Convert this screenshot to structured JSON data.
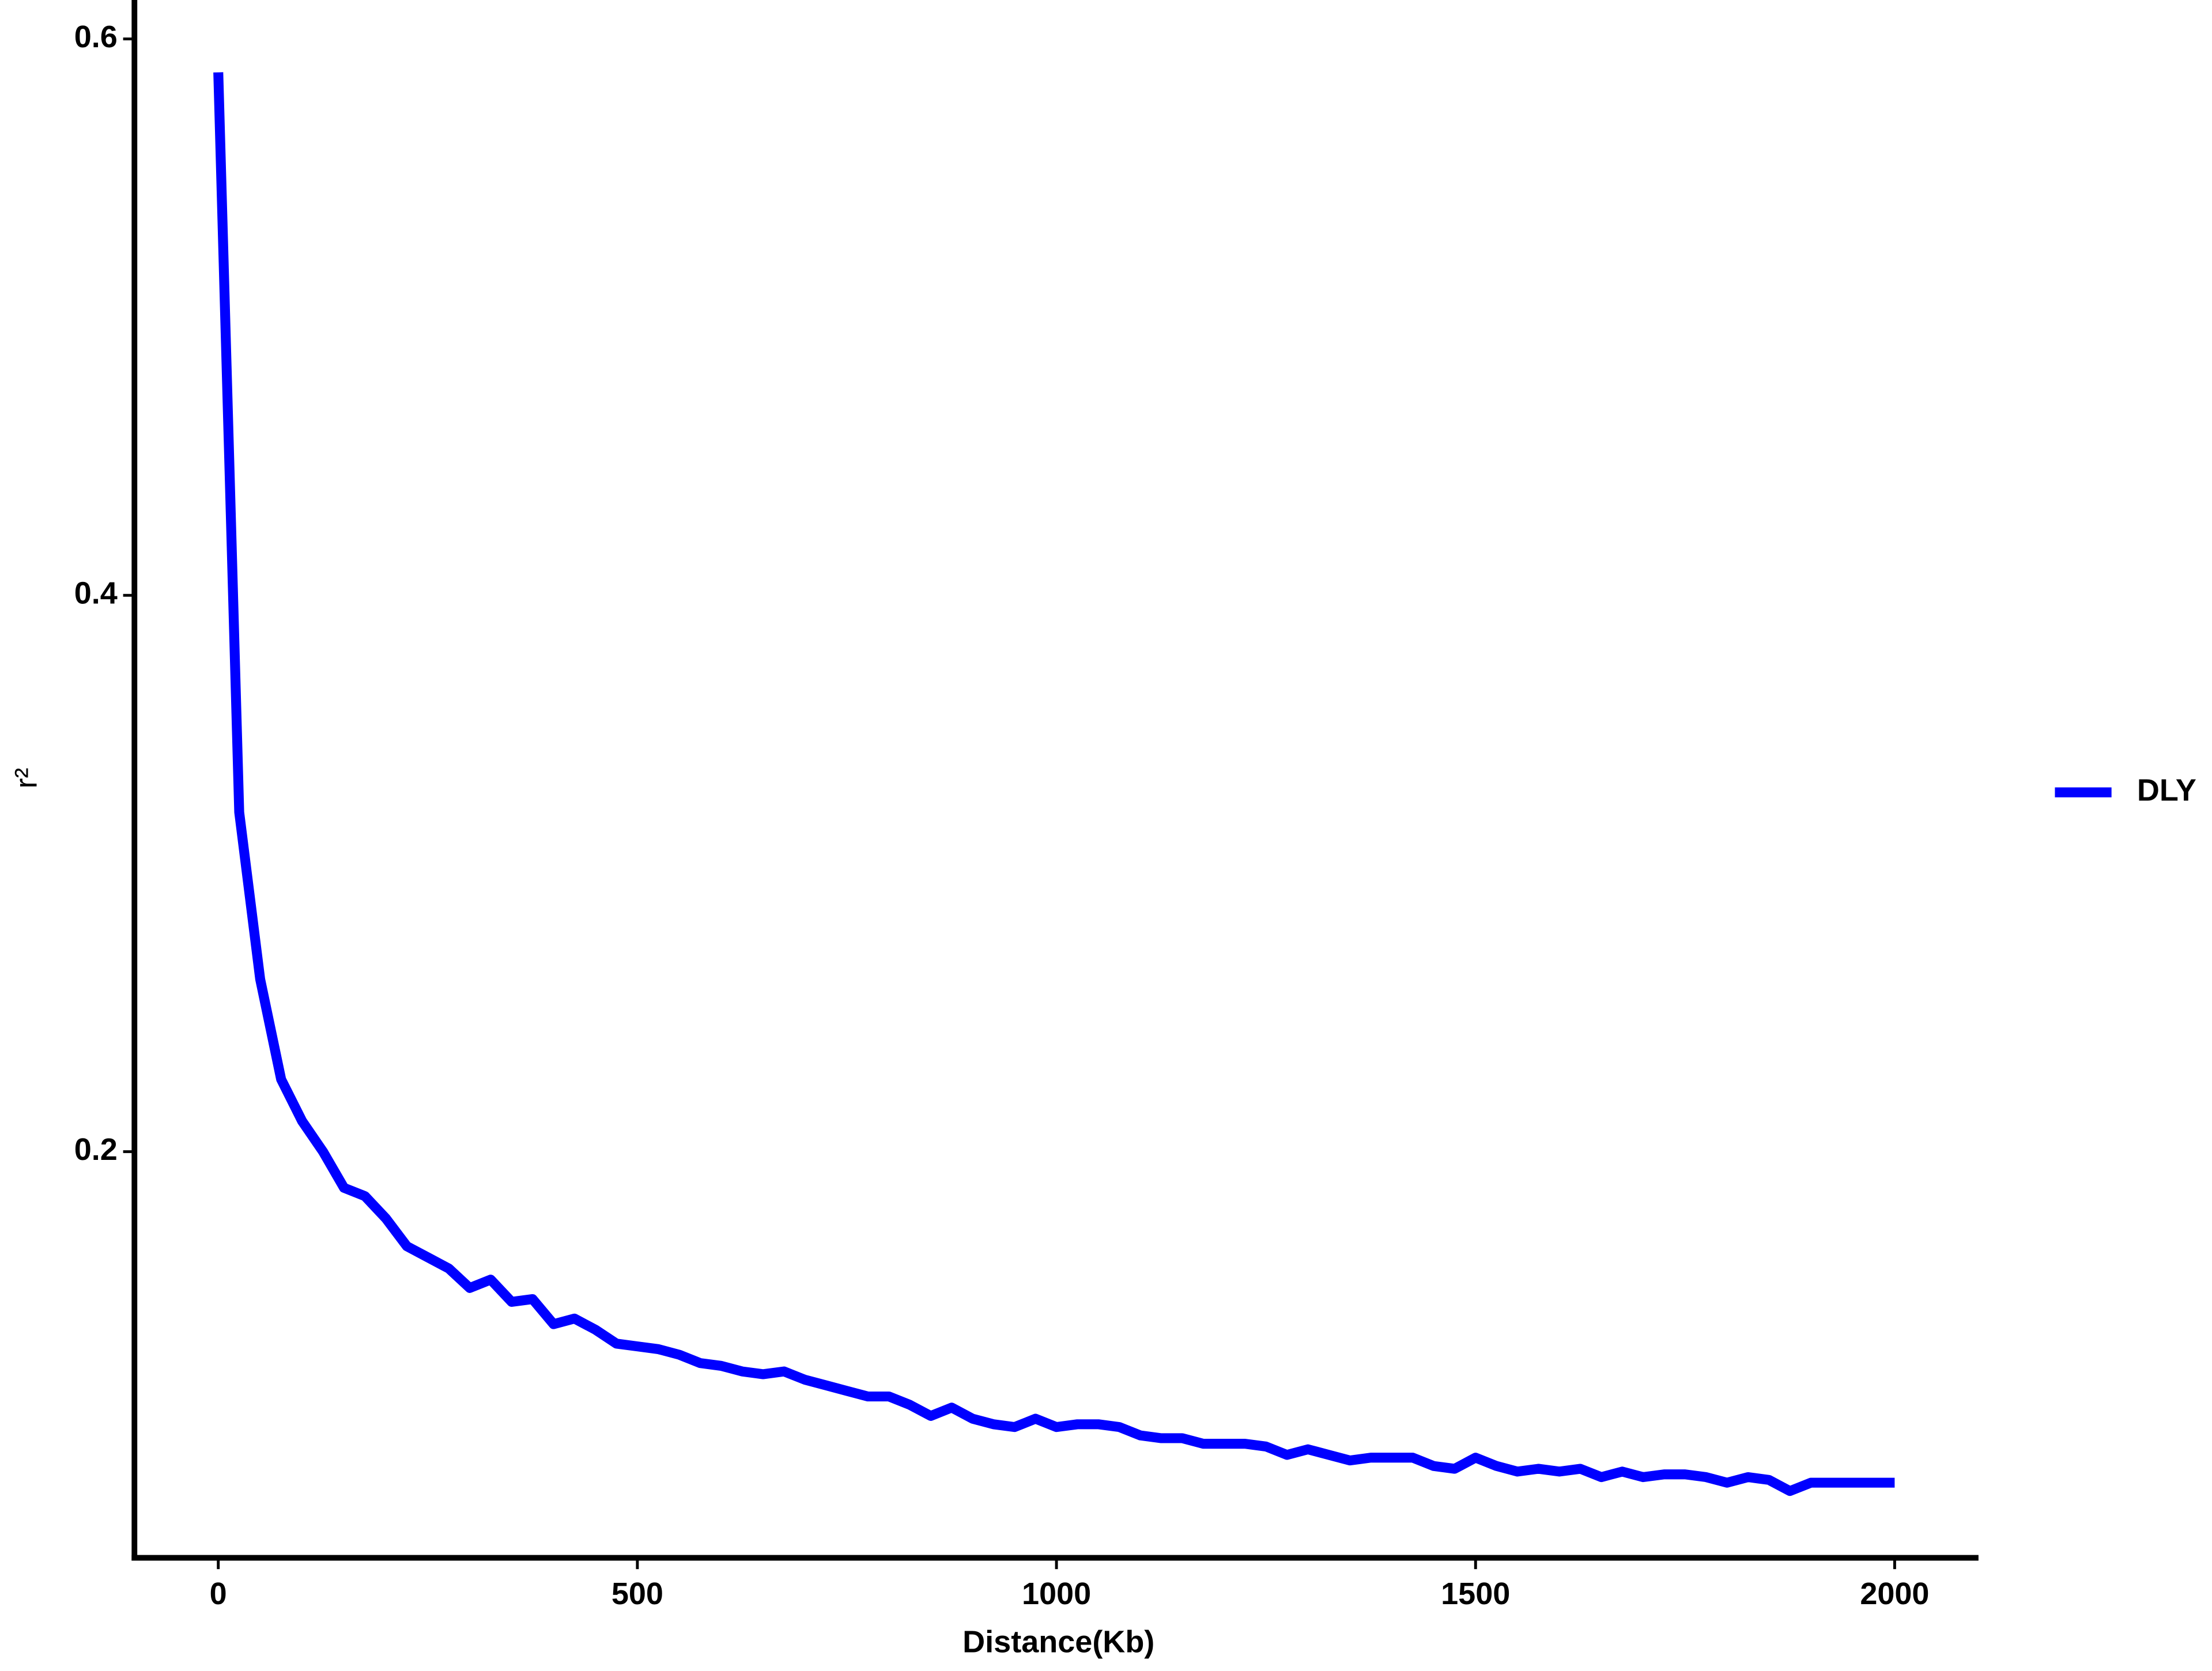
{
  "chart_data": {
    "type": "line",
    "x_label": "Distance(Kb)",
    "y_label": "r²",
    "x": [
      0,
      25,
      50,
      75,
      100,
      125,
      150,
      175,
      200,
      225,
      250,
      275,
      300,
      325,
      350,
      375,
      400,
      425,
      450,
      475,
      500,
      525,
      550,
      575,
      600,
      625,
      650,
      675,
      700,
      725,
      750,
      775,
      800,
      825,
      850,
      875,
      900,
      925,
      950,
      975,
      1000,
      1025,
      1050,
      1075,
      1100,
      1125,
      1150,
      1175,
      1200,
      1225,
      1250,
      1275,
      1300,
      1325,
      1350,
      1375,
      1400,
      1425,
      1450,
      1475,
      1500,
      1525,
      1550,
      1575,
      1600,
      1625,
      1650,
      1675,
      1700,
      1725,
      1750,
      1775,
      1800,
      1825,
      1850,
      1875,
      1900,
      1925,
      1950,
      1975,
      2000
    ],
    "series": [
      {
        "name": "DLY",
        "color": "#0000ff",
        "values": [
          0.588,
          0.322,
          0.262,
          0.226,
          0.211,
          0.2,
          0.187,
          0.184,
          0.176,
          0.166,
          0.162,
          0.158,
          0.151,
          0.154,
          0.146,
          0.147,
          0.138,
          0.14,
          0.136,
          0.131,
          0.13,
          0.129,
          0.127,
          0.124,
          0.123,
          0.121,
          0.12,
          0.121,
          0.118,
          0.116,
          0.114,
          0.112,
          0.112,
          0.109,
          0.105,
          0.108,
          0.104,
          0.102,
          0.101,
          0.104,
          0.101,
          0.102,
          0.102,
          0.101,
          0.098,
          0.097,
          0.097,
          0.095,
          0.095,
          0.095,
          0.094,
          0.091,
          0.093,
          0.091,
          0.089,
          0.09,
          0.09,
          0.09,
          0.087,
          0.086,
          0.09,
          0.087,
          0.085,
          0.086,
          0.085,
          0.086,
          0.083,
          0.085,
          0.083,
          0.084,
          0.084,
          0.083,
          0.081,
          0.083,
          0.082,
          0.078,
          0.081,
          0.081,
          0.081,
          0.081,
          0.081
        ]
      }
    ],
    "xlim": [
      -100,
      2100
    ],
    "xticks": [
      0,
      500,
      1000,
      1500,
      2000
    ],
    "ylim": [
      0.054,
      0.614
    ],
    "yticks": [
      0.2,
      0.4,
      0.6
    ],
    "grid": false,
    "legend": "right"
  }
}
